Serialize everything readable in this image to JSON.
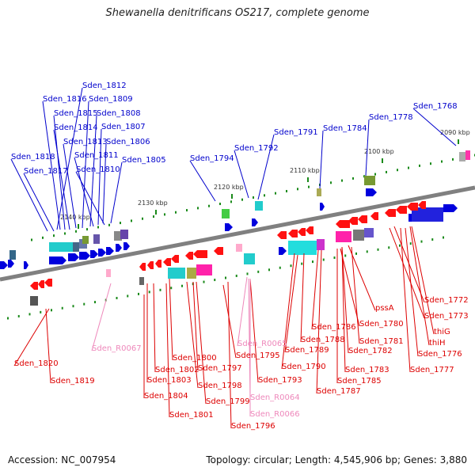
{
  "title": "Shewanella denitrificans OS217, complete genome",
  "footer": {
    "accession": "Accession: NC_007954",
    "summary": "Topology: circular; Length: 4,545,906 bp; Genes: 3,880"
  },
  "colors": {
    "forward_label": "#0000cc",
    "reverse_label": "#dd0000",
    "rna_label": "#ee88bb",
    "backbone": "#808080",
    "tick": "#1a8a1a"
  },
  "ticks": [
    "2090 kbp",
    "2100 kbp",
    "2110 kbp",
    "2120 kbp",
    "2130 kbp",
    "2140 kbp"
  ],
  "forward_labels": [
    "Sden_1812",
    "Sden_1816",
    "Sden_1809",
    "Sden_1815",
    "Sden_1808",
    "Sden_1814",
    "Sden_1807",
    "Sden_1813",
    "Sden_1806",
    "Sden_1818",
    "Sden_1811",
    "Sden_1805",
    "Sden_1817",
    "Sden_1810",
    "Sden_1794",
    "Sden_1792",
    "Sden_1791",
    "Sden_1784",
    "Sden_1778",
    "Sden_1768"
  ],
  "reverse_labels": [
    "pssA",
    "Sden_1772",
    "Sden_1773",
    "Sden_1780",
    "thiG",
    "Sden_1786",
    "Sden_1781",
    "thiH",
    "Sden_1788",
    "Sden_1782",
    "Sden_1776",
    "Sden_1789",
    "Sden_1820",
    "Sden_1800",
    "Sden_1795",
    "Sden_1790",
    "Sden_1783",
    "Sden_1777",
    "Sden_1802",
    "Sden_1797",
    "Sden_1793",
    "Sden_1785",
    "Sden_1803",
    "Sden_1798",
    "Sden_1819",
    "Sden_1787",
    "Sden_1804",
    "Sden_1799",
    "Sden_1801",
    "Sden_1796"
  ],
  "rna_labels": [
    "Sden_R0067",
    "Sden_R0065",
    "Sden_R0064",
    "Sden_R0066"
  ]
}
